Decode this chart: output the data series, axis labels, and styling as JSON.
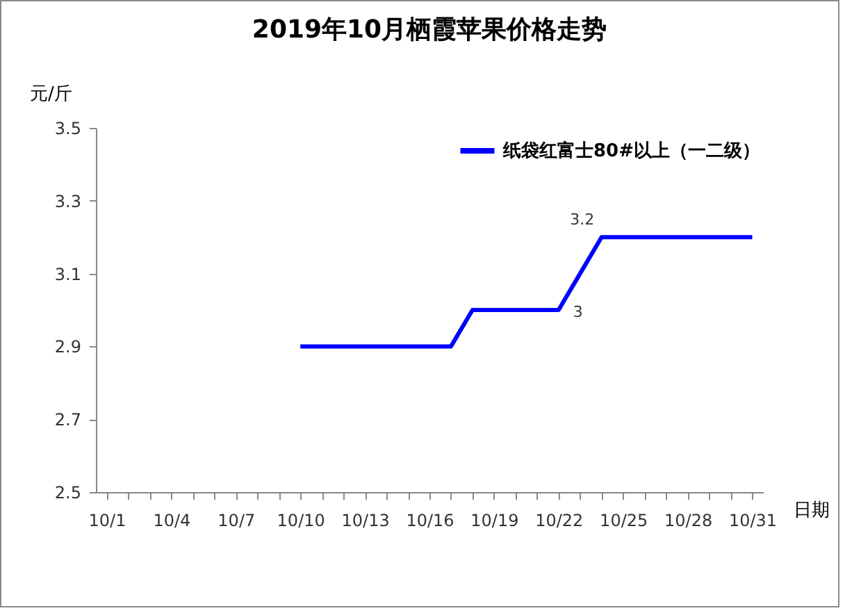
{
  "chart_data": {
    "type": "line",
    "title": "2019年10月栖霞苹果价格走势",
    "xlabel": "日期",
    "ylabel": "元/斤",
    "categories": [
      "10/1",
      null,
      null,
      "10/4",
      null,
      null,
      "10/7",
      null,
      null,
      "10/10",
      null,
      null,
      "10/13",
      null,
      null,
      "10/16",
      null,
      null,
      "10/19",
      null,
      null,
      "10/22",
      null,
      null,
      "10/25",
      null,
      null,
      "10/28",
      null,
      null,
      "10/31"
    ],
    "series": [
      {
        "name": "纸袋红富士80#以上（一二级）",
        "color": "#0000ff",
        "values": [
          null,
          null,
          null,
          null,
          null,
          null,
          null,
          null,
          null,
          2.9,
          2.9,
          2.9,
          2.9,
          2.9,
          2.9,
          2.9,
          2.9,
          3.0,
          3.0,
          3.0,
          3.0,
          3.0,
          3.1,
          3.2,
          3.2,
          3.2,
          3.2,
          3.2,
          3.2,
          3.2,
          3.2
        ],
        "value_labels": [
          null,
          null,
          null,
          null,
          null,
          null,
          null,
          null,
          null,
          null,
          null,
          null,
          null,
          null,
          null,
          null,
          null,
          null,
          null,
          null,
          null,
          "3",
          null,
          "3.2",
          null,
          null,
          null,
          null,
          null,
          null,
          null
        ]
      }
    ],
    "ylim": [
      2.5,
      3.5
    ],
    "yticks": [
      2.5,
      2.7,
      2.9,
      3.1,
      3.3,
      3.5
    ],
    "grid": false,
    "legend": "top right",
    "marker": "none",
    "line_style": "solid"
  }
}
